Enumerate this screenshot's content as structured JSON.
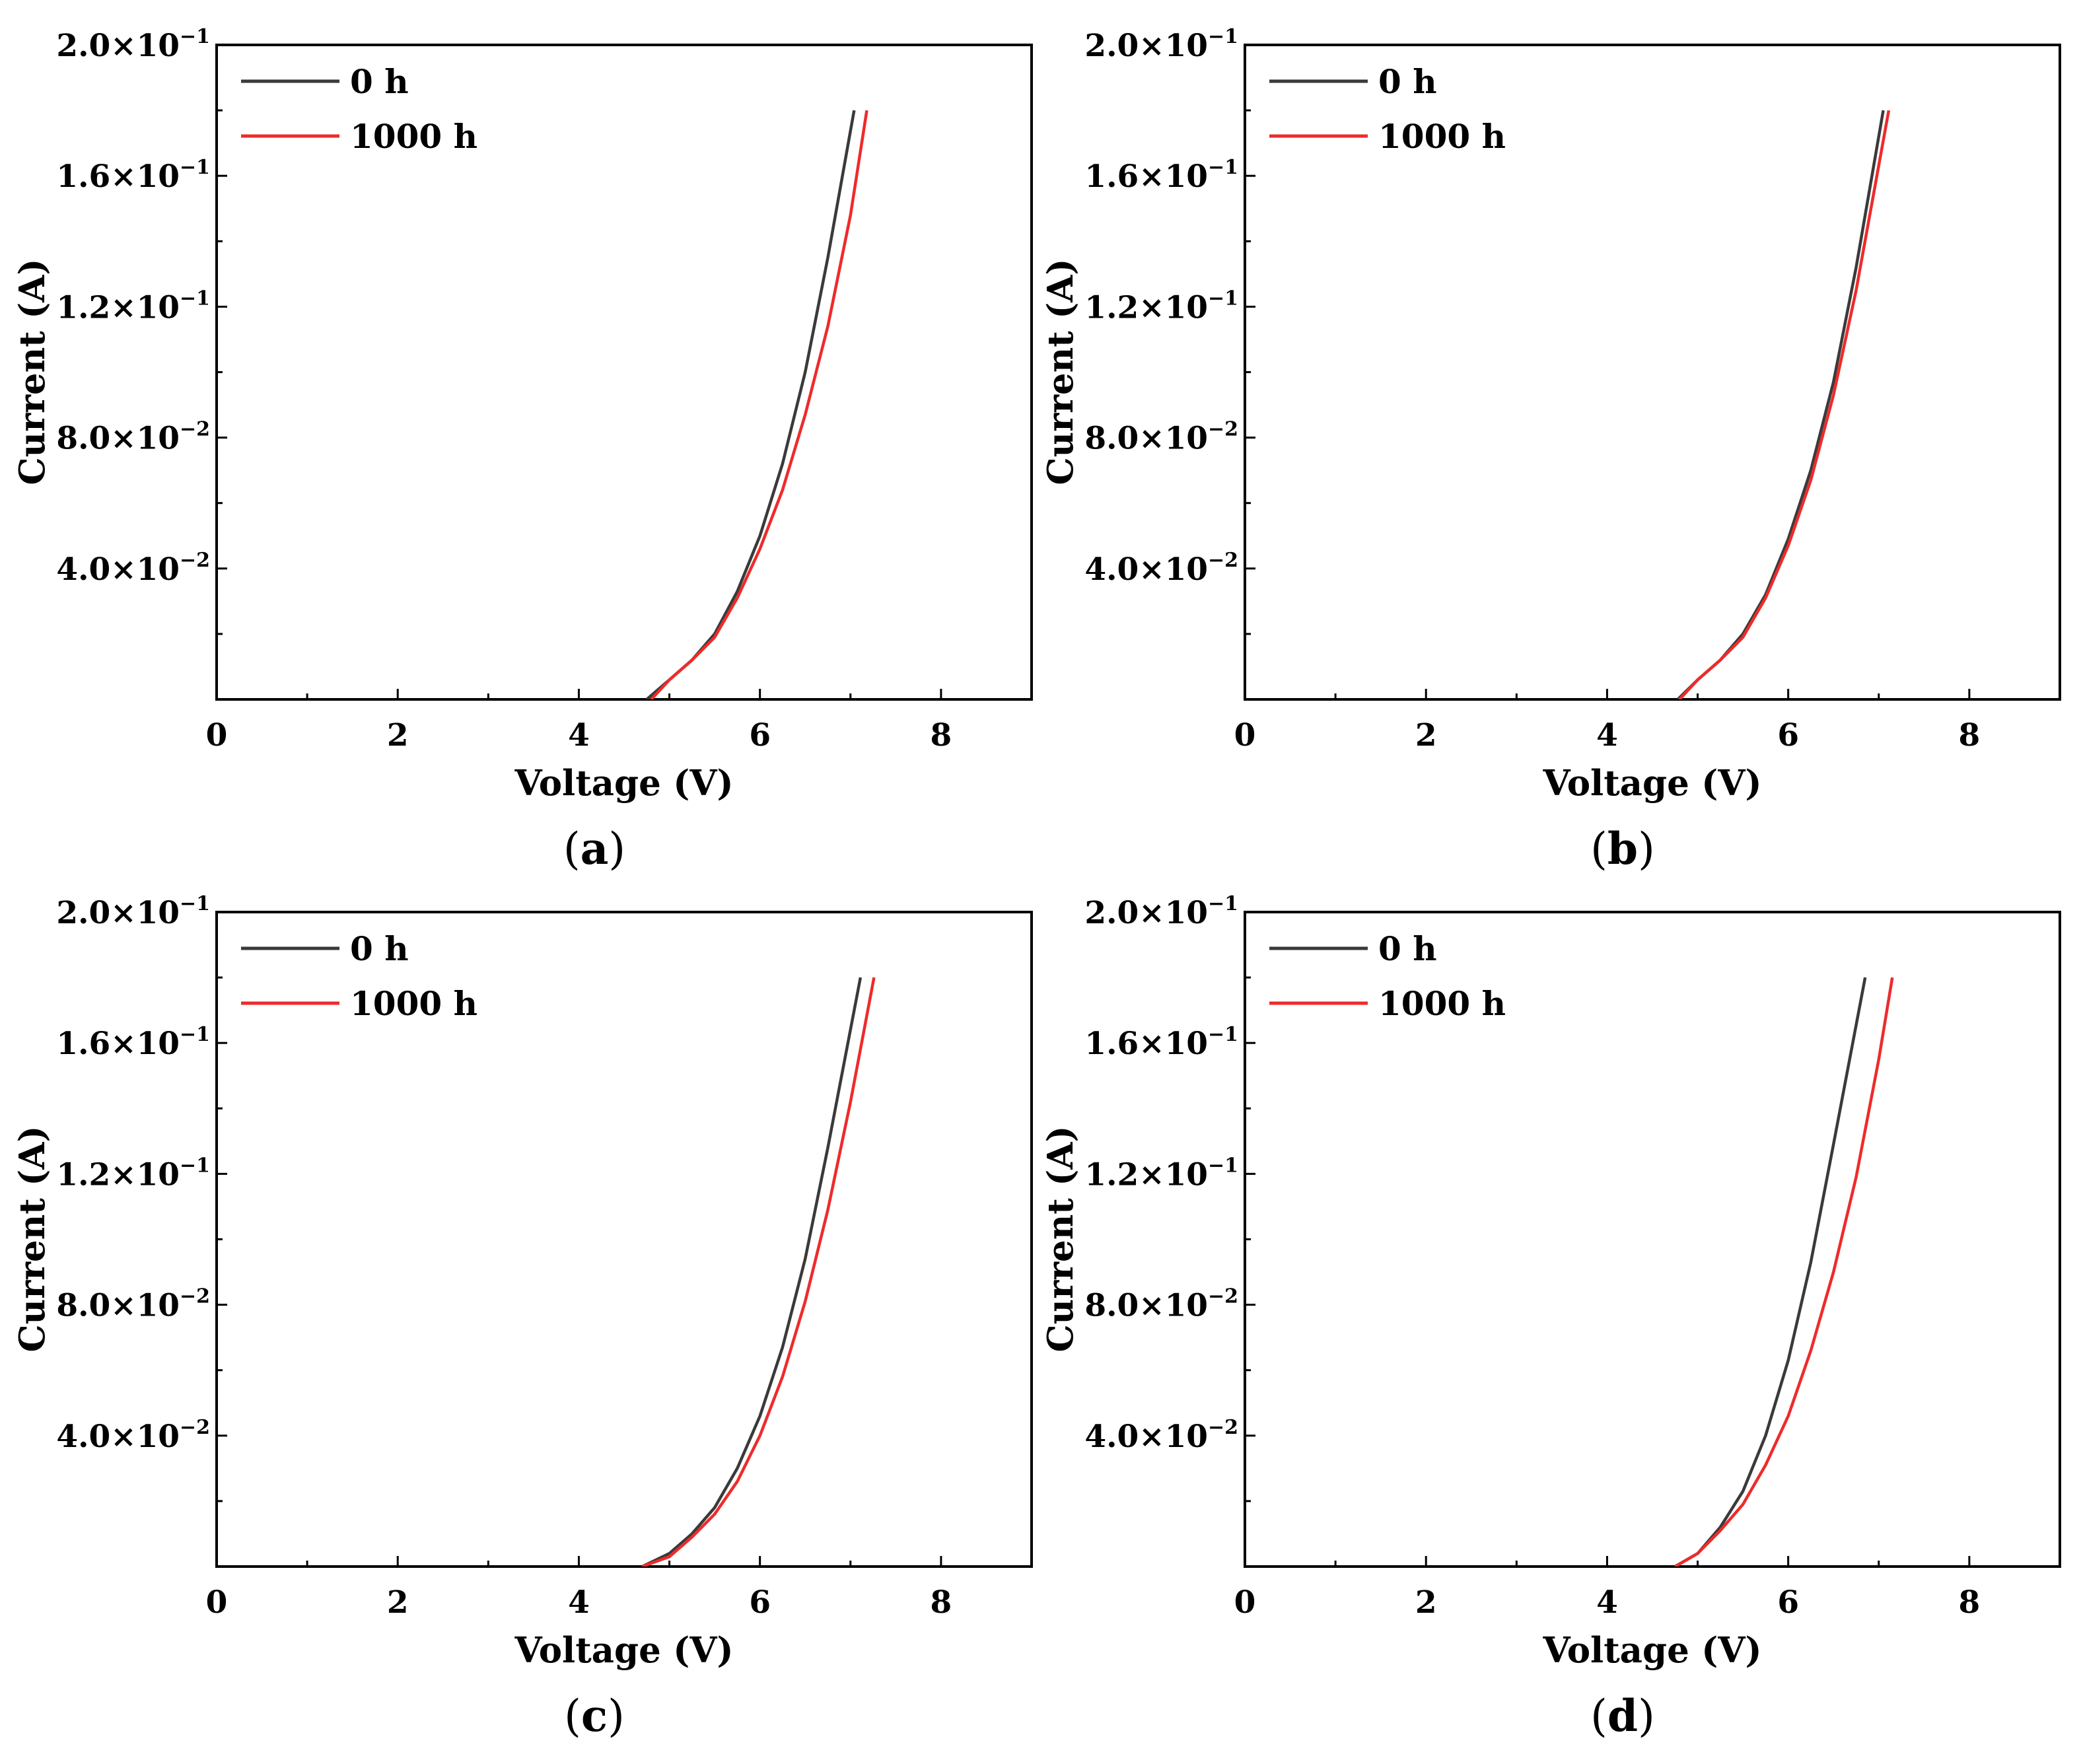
{
  "colors": {
    "series_0h": "#3a3a3a",
    "series_1000h": "#ee2b2b",
    "axis": "#000000"
  },
  "chart_data": [
    {
      "panel": "a",
      "type": "line",
      "xlabel": "Voltage (V)",
      "ylabel": "Current (A)",
      "xlim": [
        0,
        9
      ],
      "ylim": [
        0,
        0.2
      ],
      "xticks": [
        0,
        2,
        4,
        6,
        8
      ],
      "yticks": [
        {
          "value": 0.04,
          "mantissa": "4.0×10",
          "exp": "−2"
        },
        {
          "value": 0.08,
          "mantissa": "8.0×10",
          "exp": "−2"
        },
        {
          "value": 0.12,
          "mantissa": "1.2×10",
          "exp": "−1"
        },
        {
          "value": 0.16,
          "mantissa": "1.6×10",
          "exp": "−1"
        },
        {
          "value": 0.2,
          "mantissa": "2.0×10",
          "exp": "−1"
        }
      ],
      "legend_position": "top-left",
      "series": [
        {
          "name": "0 h",
          "color": "#3a3a3a",
          "x": [
            4.75,
            5.0,
            5.25,
            5.5,
            5.75,
            6.0,
            6.25,
            6.5,
            6.75,
            7.04
          ],
          "y": [
            0,
            0.006,
            0.012,
            0.02,
            0.033,
            0.05,
            0.072,
            0.1,
            0.135,
            0.18
          ]
        },
        {
          "name": "1000 h",
          "color": "#ee2b2b",
          "x": [
            4.8,
            5.0,
            5.25,
            5.5,
            5.75,
            6.0,
            6.25,
            6.5,
            6.75,
            7.0,
            7.18
          ],
          "y": [
            0,
            0.006,
            0.012,
            0.019,
            0.031,
            0.046,
            0.064,
            0.087,
            0.114,
            0.148,
            0.18
          ]
        }
      ]
    },
    {
      "panel": "b",
      "type": "line",
      "xlabel": "Voltage (V)",
      "ylabel": "Current (A)",
      "xlim": [
        0,
        9
      ],
      "ylim": [
        0,
        0.2
      ],
      "xticks": [
        0,
        2,
        4,
        6,
        8
      ],
      "yticks": [
        {
          "value": 0.04,
          "mantissa": "4.0×10",
          "exp": "−2"
        },
        {
          "value": 0.08,
          "mantissa": "8.0×10",
          "exp": "−2"
        },
        {
          "value": 0.12,
          "mantissa": "1.2×10",
          "exp": "−1"
        },
        {
          "value": 0.16,
          "mantissa": "1.6×10",
          "exp": "−1"
        },
        {
          "value": 0.2,
          "mantissa": "2.0×10",
          "exp": "−1"
        }
      ],
      "legend_position": "top-left",
      "series": [
        {
          "name": "0 h",
          "color": "#3a3a3a",
          "x": [
            4.78,
            5.0,
            5.25,
            5.5,
            5.75,
            6.0,
            6.25,
            6.5,
            6.75,
            7.05
          ],
          "y": [
            0,
            0.006,
            0.012,
            0.02,
            0.032,
            0.049,
            0.07,
            0.097,
            0.132,
            0.18
          ]
        },
        {
          "name": "1000 h",
          "color": "#ee2b2b",
          "x": [
            4.8,
            5.0,
            5.25,
            5.5,
            5.75,
            6.0,
            6.25,
            6.5,
            6.75,
            7.11
          ],
          "y": [
            0,
            0.006,
            0.012,
            0.019,
            0.031,
            0.047,
            0.067,
            0.093,
            0.125,
            0.18
          ]
        }
      ]
    },
    {
      "panel": "c",
      "type": "line",
      "xlabel": "Voltage (V)",
      "ylabel": "Current (A)",
      "xlim": [
        0,
        9
      ],
      "ylim": [
        0,
        0.2
      ],
      "xticks": [
        0,
        2,
        4,
        6,
        8
      ],
      "yticks": [
        {
          "value": 0.04,
          "mantissa": "4.0×10",
          "exp": "−2"
        },
        {
          "value": 0.08,
          "mantissa": "8.0×10",
          "exp": "−2"
        },
        {
          "value": 0.12,
          "mantissa": "1.2×10",
          "exp": "−1"
        },
        {
          "value": 0.16,
          "mantissa": "1.6×10",
          "exp": "−1"
        },
        {
          "value": 0.2,
          "mantissa": "2.0×10",
          "exp": "−1"
        }
      ],
      "legend_position": "top-left",
      "series": [
        {
          "name": "0 h",
          "color": "#3a3a3a",
          "x": [
            4.7,
            5.0,
            5.25,
            5.5,
            5.75,
            6.0,
            6.25,
            6.5,
            6.75,
            7.11
          ],
          "y": [
            0,
            0.004,
            0.01,
            0.018,
            0.03,
            0.046,
            0.067,
            0.094,
            0.128,
            0.18
          ]
        },
        {
          "name": "1000 h",
          "color": "#ee2b2b",
          "x": [
            4.7,
            5.0,
            5.25,
            5.5,
            5.75,
            6.0,
            6.25,
            6.5,
            6.75,
            7.0,
            7.26
          ],
          "y": [
            0,
            0.003,
            0.009,
            0.016,
            0.026,
            0.04,
            0.058,
            0.081,
            0.109,
            0.142,
            0.18
          ]
        }
      ]
    },
    {
      "panel": "d",
      "type": "line",
      "xlabel": "Voltage (V)",
      "ylabel": "Current (A)",
      "xlim": [
        0,
        9
      ],
      "ylim": [
        0,
        0.2
      ],
      "xticks": [
        0,
        2,
        4,
        6,
        8
      ],
      "yticks": [
        {
          "value": 0.04,
          "mantissa": "4.0×10",
          "exp": "−2"
        },
        {
          "value": 0.08,
          "mantissa": "8.0×10",
          "exp": "−2"
        },
        {
          "value": 0.12,
          "mantissa": "1.2×10",
          "exp": "−1"
        },
        {
          "value": 0.16,
          "mantissa": "1.6×10",
          "exp": "−1"
        },
        {
          "value": 0.2,
          "mantissa": "2.0×10",
          "exp": "−1"
        }
      ],
      "legend_position": "top-left",
      "series": [
        {
          "name": "0 h",
          "color": "#3a3a3a",
          "x": [
            4.75,
            5.0,
            5.25,
            5.5,
            5.75,
            6.0,
            6.25,
            6.5,
            6.85
          ],
          "y": [
            0,
            0.004,
            0.012,
            0.023,
            0.04,
            0.063,
            0.093,
            0.129,
            0.18
          ]
        },
        {
          "name": "1000 h",
          "color": "#ee2b2b",
          "x": [
            4.75,
            5.0,
            5.25,
            5.5,
            5.75,
            6.0,
            6.25,
            6.5,
            6.75,
            7.0,
            7.15
          ],
          "y": [
            0,
            0.004,
            0.011,
            0.019,
            0.031,
            0.046,
            0.066,
            0.09,
            0.119,
            0.155,
            0.18
          ]
        }
      ]
    }
  ]
}
